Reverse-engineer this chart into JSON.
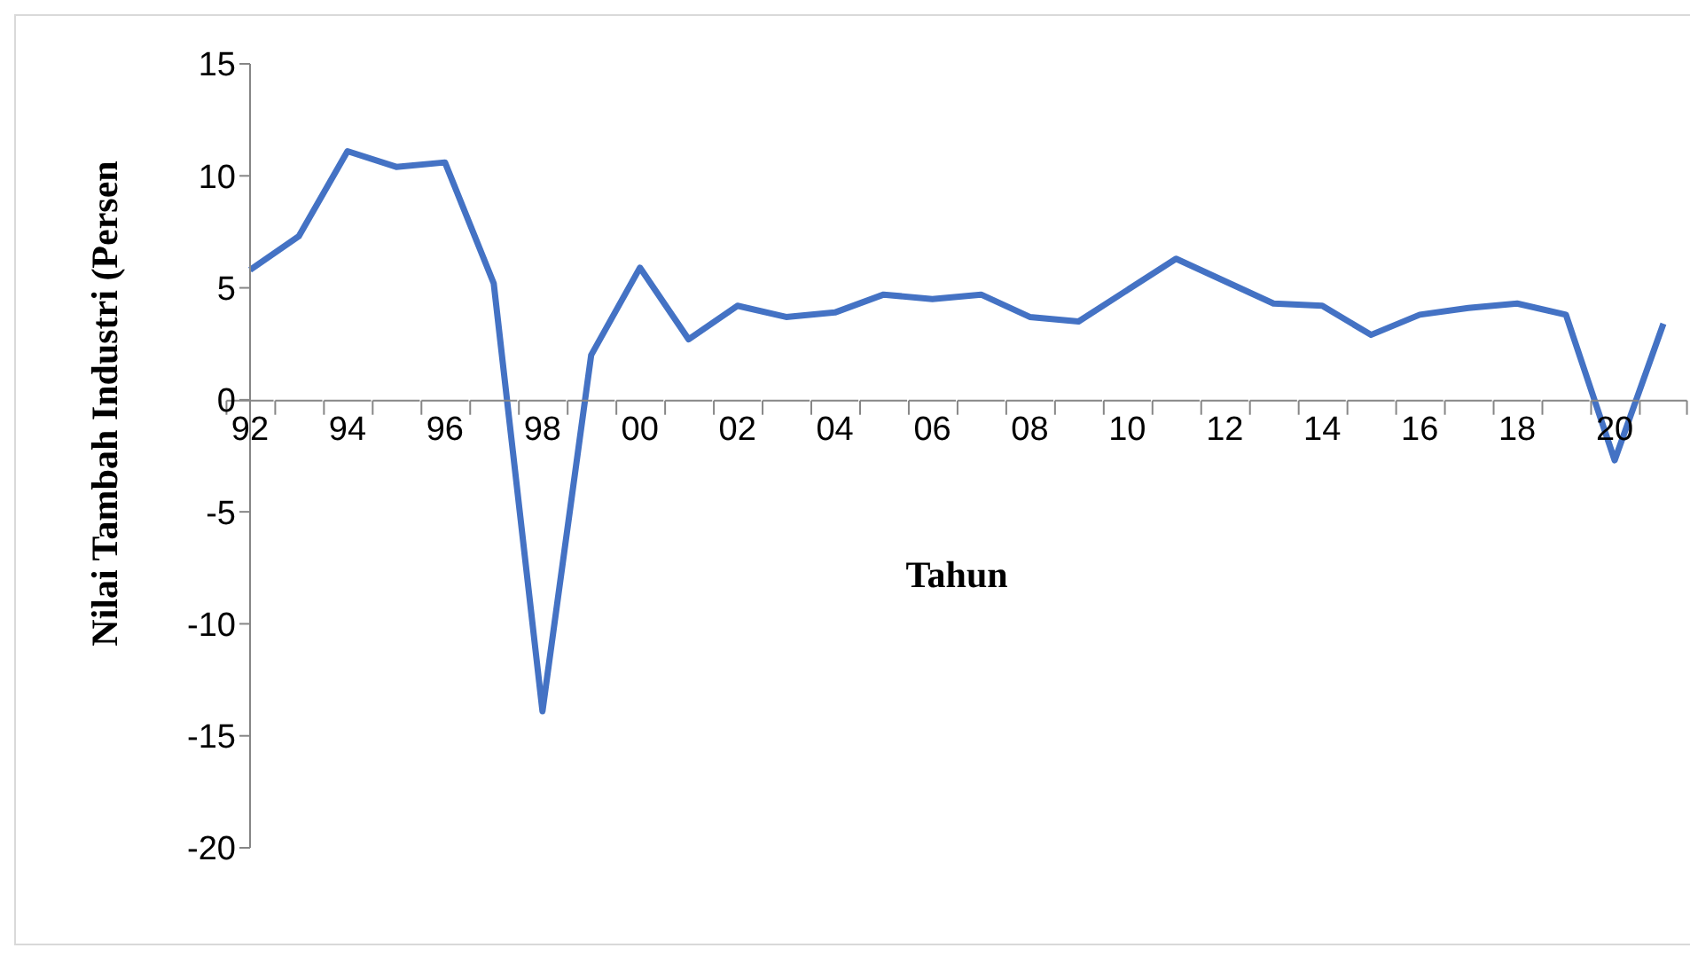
{
  "chart_data": {
    "type": "line",
    "xlabel": "Tahun",
    "ylabel": "Nilai Tambah Industri (Persen",
    "categories": [
      "92",
      null,
      "94",
      null,
      "96",
      null,
      "98",
      null,
      "00",
      null,
      "02",
      null,
      "04",
      null,
      "06",
      null,
      "08",
      null,
      "10",
      null,
      "12",
      null,
      "14",
      null,
      "16",
      null,
      "18",
      null,
      "20",
      null
    ],
    "series": [
      {
        "color": "#4472c4",
        "values": [
          5.8,
          7.3,
          11.1,
          10.4,
          10.6,
          5.2,
          -13.9,
          2.0,
          5.9,
          2.7,
          4.2,
          3.7,
          3.9,
          4.7,
          4.5,
          4.7,
          3.7,
          3.5,
          4.9,
          6.3,
          5.3,
          4.3,
          4.2,
          2.9,
          3.8,
          4.1,
          4.3,
          3.8,
          -2.7,
          3.4
        ]
      }
    ],
    "ylim": [
      -20,
      15
    ],
    "yticks": [
      -20,
      -15,
      -10,
      -5,
      0,
      5,
      10,
      15
    ],
    "marker": "none",
    "line_style": "solid"
  }
}
